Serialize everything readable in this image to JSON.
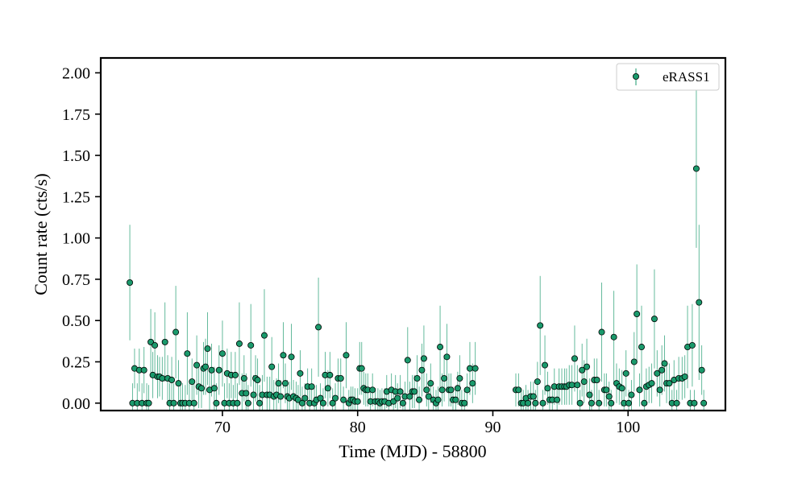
{
  "chart_data": {
    "type": "scatter",
    "title": "",
    "xlabel": "Time (MJD) - 58800",
    "ylabel": "Count rate (cts/s)",
    "xlim": [
      61.0,
      107.2
    ],
    "ylim": [
      -0.045,
      2.09
    ],
    "xticks": [
      70,
      80,
      90,
      100
    ],
    "xtick_labels": [
      "70",
      "80",
      "90",
      "100"
    ],
    "yticks": [
      0.0,
      0.25,
      0.5,
      0.75,
      1.0,
      1.25,
      1.5,
      1.75,
      2.0
    ],
    "ytick_labels": [
      "0.00",
      "0.25",
      "0.50",
      "0.75",
      "1.00",
      "1.25",
      "1.50",
      "1.75",
      "2.00"
    ],
    "grid": false,
    "legend_position": "top-right",
    "series": [
      {
        "name": "eRASS1",
        "color": "#1a9a6c",
        "points": [
          [
            63.15,
            0.73,
            0.35
          ],
          [
            63.35,
            0.0,
            0.12
          ],
          [
            63.5,
            0.21,
            0.12
          ],
          [
            63.7,
            0.0,
            0.12
          ],
          [
            63.85,
            0.2,
            0.13
          ],
          [
            64.05,
            0.0,
            0.12
          ],
          [
            64.2,
            0.2,
            0.14
          ],
          [
            64.4,
            0.0,
            0.12
          ],
          [
            64.55,
            0.0,
            0.11
          ],
          [
            64.7,
            0.37,
            0.2
          ],
          [
            64.85,
            0.17,
            0.14
          ],
          [
            65.0,
            0.35,
            0.2
          ],
          [
            65.2,
            0.16,
            0.13
          ],
          [
            65.35,
            0.16,
            0.12
          ],
          [
            65.55,
            0.15,
            0.13
          ],
          [
            65.75,
            0.37,
            0.24
          ],
          [
            65.95,
            0.15,
            0.14
          ],
          [
            66.1,
            0.0,
            0.12
          ],
          [
            66.25,
            0.14,
            0.14
          ],
          [
            66.4,
            0.0,
            0.12
          ],
          [
            66.55,
            0.43,
            0.28
          ],
          [
            66.75,
            0.12,
            0.14
          ],
          [
            66.9,
            0.0,
            0.12
          ],
          [
            67.05,
            0.0,
            0.12
          ],
          [
            67.25,
            0.0,
            0.11
          ],
          [
            67.4,
            0.3,
            0.25
          ],
          [
            67.55,
            0.0,
            0.12
          ],
          [
            67.75,
            0.13,
            0.14
          ],
          [
            67.9,
            0.0,
            0.12
          ],
          [
            68.1,
            0.23,
            0.18
          ],
          [
            68.25,
            0.1,
            0.13
          ],
          [
            68.45,
            0.09,
            0.12
          ],
          [
            68.6,
            0.21,
            0.16
          ],
          [
            68.75,
            0.22,
            0.17
          ],
          [
            68.9,
            0.33,
            0.22
          ],
          [
            69.05,
            0.08,
            0.12
          ],
          [
            69.2,
            0.2,
            0.16
          ],
          [
            69.4,
            0.09,
            0.13
          ],
          [
            69.55,
            0.0,
            0.12
          ],
          [
            69.75,
            0.2,
            0.15
          ],
          [
            70.0,
            0.3,
            0.2
          ],
          [
            70.15,
            0.0,
            0.12
          ],
          [
            70.35,
            0.18,
            0.15
          ],
          [
            70.5,
            0.0,
            0.12
          ],
          [
            70.65,
            0.17,
            0.14
          ],
          [
            70.8,
            0.0,
            0.11
          ],
          [
            70.95,
            0.17,
            0.14
          ],
          [
            71.1,
            0.0,
            0.12
          ],
          [
            71.25,
            0.36,
            0.25
          ],
          [
            71.45,
            0.06,
            0.12
          ],
          [
            71.6,
            0.15,
            0.14
          ],
          [
            71.75,
            0.06,
            0.12
          ],
          [
            71.9,
            0.0,
            0.11
          ],
          [
            72.1,
            0.35,
            0.25
          ],
          [
            72.3,
            0.05,
            0.12
          ],
          [
            72.45,
            0.15,
            0.14
          ],
          [
            72.6,
            0.14,
            0.13
          ],
          [
            72.75,
            0.0,
            0.11
          ],
          [
            72.95,
            0.05,
            0.12
          ],
          [
            73.1,
            0.41,
            0.28
          ],
          [
            73.3,
            0.05,
            0.11
          ],
          [
            73.5,
            0.05,
            0.11
          ],
          [
            73.65,
            0.22,
            0.18
          ],
          [
            73.8,
            0.04,
            0.1
          ],
          [
            74.0,
            0.05,
            0.1
          ],
          [
            74.15,
            0.12,
            0.12
          ],
          [
            74.3,
            0.04,
            0.1
          ],
          [
            74.5,
            0.29,
            0.2
          ],
          [
            74.65,
            0.12,
            0.12
          ],
          [
            74.8,
            0.04,
            0.1
          ],
          [
            74.95,
            0.03,
            0.1
          ],
          [
            75.1,
            0.28,
            0.2
          ],
          [
            75.25,
            0.04,
            0.1
          ],
          [
            75.45,
            0.03,
            0.1
          ],
          [
            75.6,
            0.02,
            0.09
          ],
          [
            75.75,
            0.18,
            0.14
          ],
          [
            75.9,
            0.0,
            0.1
          ],
          [
            76.1,
            0.03,
            0.09
          ],
          [
            76.3,
            0.1,
            0.11
          ],
          [
            76.45,
            0.0,
            0.09
          ],
          [
            76.6,
            0.1,
            0.11
          ],
          [
            76.8,
            0.0,
            0.09
          ],
          [
            76.95,
            0.02,
            0.09
          ],
          [
            77.1,
            0.46,
            0.3
          ],
          [
            77.25,
            0.03,
            0.09
          ],
          [
            77.45,
            0.0,
            0.09
          ],
          [
            77.6,
            0.17,
            0.14
          ],
          [
            77.8,
            0.09,
            0.11
          ],
          [
            77.95,
            0.17,
            0.14
          ],
          [
            78.15,
            0.0,
            0.09
          ],
          [
            78.35,
            0.03,
            0.09
          ],
          [
            78.55,
            0.15,
            0.12
          ],
          [
            78.75,
            0.15,
            0.12
          ],
          [
            78.95,
            0.02,
            0.08
          ],
          [
            79.15,
            0.29,
            0.2
          ],
          [
            79.35,
            0.0,
            0.08
          ],
          [
            79.5,
            0.02,
            0.08
          ],
          [
            79.65,
            0.02,
            0.08
          ],
          [
            79.8,
            0.01,
            0.08
          ],
          [
            80.0,
            0.01,
            0.08
          ],
          [
            80.15,
            0.21,
            0.16
          ],
          [
            80.3,
            0.21,
            0.16
          ],
          [
            80.45,
            0.09,
            0.1
          ],
          [
            80.6,
            0.08,
            0.1
          ],
          [
            80.75,
            0.08,
            0.1
          ],
          [
            80.95,
            0.01,
            0.08
          ],
          [
            81.1,
            0.08,
            0.1
          ],
          [
            81.3,
            0.01,
            0.08
          ],
          [
            81.5,
            0.01,
            0.08
          ],
          [
            81.65,
            0.0,
            0.08
          ],
          [
            81.8,
            0.01,
            0.08
          ],
          [
            82.0,
            0.01,
            0.08
          ],
          [
            82.15,
            0.07,
            0.1
          ],
          [
            82.3,
            0.0,
            0.08
          ],
          [
            82.5,
            0.08,
            0.1
          ],
          [
            82.65,
            0.01,
            0.08
          ],
          [
            82.8,
            0.07,
            0.1
          ],
          [
            82.95,
            0.03,
            0.09
          ],
          [
            83.15,
            0.07,
            0.1
          ],
          [
            83.35,
            0.0,
            0.08
          ],
          [
            83.5,
            0.04,
            0.09
          ],
          [
            83.7,
            0.26,
            0.2
          ],
          [
            83.85,
            0.04,
            0.09
          ],
          [
            84.05,
            0.07,
            0.1
          ],
          [
            84.2,
            0.07,
            0.1
          ],
          [
            84.4,
            0.15,
            0.14
          ],
          [
            84.55,
            0.02,
            0.08
          ],
          [
            84.75,
            0.2,
            0.16
          ],
          [
            84.9,
            0.27,
            0.2
          ],
          [
            85.1,
            0.08,
            0.1
          ],
          [
            85.25,
            0.04,
            0.09
          ],
          [
            85.4,
            0.12,
            0.12
          ],
          [
            85.6,
            0.02,
            0.08
          ],
          [
            85.8,
            0.0,
            0.08
          ],
          [
            85.95,
            0.02,
            0.08
          ],
          [
            86.1,
            0.34,
            0.25
          ],
          [
            86.25,
            0.08,
            0.1
          ],
          [
            86.4,
            0.15,
            0.14
          ],
          [
            86.6,
            0.28,
            0.2
          ],
          [
            86.75,
            0.08,
            0.1
          ],
          [
            86.9,
            0.08,
            0.1
          ],
          [
            87.05,
            0.02,
            0.08
          ],
          [
            87.25,
            0.02,
            0.08
          ],
          [
            87.4,
            0.09,
            0.1
          ],
          [
            87.55,
            0.15,
            0.14
          ],
          [
            87.7,
            0.0,
            0.08
          ],
          [
            87.9,
            0.0,
            0.08
          ],
          [
            88.1,
            0.08,
            0.1
          ],
          [
            88.3,
            0.21,
            0.16
          ],
          [
            88.5,
            0.12,
            0.12
          ],
          [
            88.7,
            0.21,
            0.16
          ],
          [
            91.7,
            0.08,
            0.1
          ],
          [
            91.9,
            0.08,
            0.1
          ],
          [
            92.1,
            0.0,
            0.08
          ],
          [
            92.25,
            0.0,
            0.08
          ],
          [
            92.45,
            0.03,
            0.08
          ],
          [
            92.6,
            0.0,
            0.08
          ],
          [
            92.8,
            0.04,
            0.09
          ],
          [
            93.0,
            0.04,
            0.09
          ],
          [
            93.15,
            0.0,
            0.08
          ],
          [
            93.3,
            0.13,
            0.12
          ],
          [
            93.5,
            0.47,
            0.3
          ],
          [
            93.7,
            0.0,
            0.08
          ],
          [
            93.85,
            0.23,
            0.18
          ],
          [
            94.05,
            0.09,
            0.1
          ],
          [
            94.2,
            0.02,
            0.08
          ],
          [
            94.4,
            0.02,
            0.08
          ],
          [
            94.55,
            0.1,
            0.11
          ],
          [
            94.75,
            0.02,
            0.08
          ],
          [
            94.9,
            0.1,
            0.11
          ],
          [
            95.1,
            0.1,
            0.11
          ],
          [
            95.3,
            0.1,
            0.11
          ],
          [
            95.45,
            0.1,
            0.11
          ],
          [
            95.65,
            0.11,
            0.12
          ],
          [
            95.85,
            0.11,
            0.12
          ],
          [
            96.05,
            0.27,
            0.2
          ],
          [
            96.25,
            0.11,
            0.12
          ],
          [
            96.45,
            0.0,
            0.08
          ],
          [
            96.6,
            0.2,
            0.16
          ],
          [
            96.75,
            0.13,
            0.13
          ],
          [
            96.95,
            0.22,
            0.17
          ],
          [
            97.15,
            0.05,
            0.1
          ],
          [
            97.3,
            0.0,
            0.08
          ],
          [
            97.5,
            0.14,
            0.13
          ],
          [
            97.7,
            0.14,
            0.13
          ],
          [
            97.85,
            0.0,
            0.08
          ],
          [
            98.05,
            0.43,
            0.3
          ],
          [
            98.25,
            0.08,
            0.1
          ],
          [
            98.4,
            0.08,
            0.1
          ],
          [
            98.6,
            0.04,
            0.09
          ],
          [
            98.75,
            0.0,
            0.08
          ],
          [
            98.95,
            0.4,
            0.28
          ],
          [
            99.15,
            0.12,
            0.12
          ],
          [
            99.35,
            0.1,
            0.11
          ],
          [
            99.55,
            0.09,
            0.11
          ],
          [
            99.7,
            0.0,
            0.08
          ],
          [
            99.85,
            0.18,
            0.14
          ],
          [
            100.05,
            0.0,
            0.08
          ],
          [
            100.25,
            0.05,
            0.09
          ],
          [
            100.45,
            0.25,
            0.18
          ],
          [
            100.65,
            0.54,
            0.3
          ],
          [
            100.85,
            0.08,
            0.1
          ],
          [
            101.0,
            0.34,
            0.25
          ],
          [
            101.2,
            0.0,
            0.08
          ],
          [
            101.35,
            0.1,
            0.11
          ],
          [
            101.55,
            0.11,
            0.11
          ],
          [
            101.75,
            0.12,
            0.12
          ],
          [
            101.95,
            0.51,
            0.3
          ],
          [
            102.15,
            0.18,
            0.14
          ],
          [
            102.35,
            0.08,
            0.1
          ],
          [
            102.5,
            0.2,
            0.15
          ],
          [
            102.7,
            0.24,
            0.17
          ],
          [
            102.85,
            0.12,
            0.12
          ],
          [
            103.05,
            0.12,
            0.12
          ],
          [
            103.25,
            0.0,
            0.08
          ],
          [
            103.4,
            0.14,
            0.12
          ],
          [
            103.6,
            0.0,
            0.08
          ],
          [
            103.75,
            0.15,
            0.13
          ],
          [
            104.0,
            0.15,
            0.13
          ],
          [
            104.2,
            0.16,
            0.13
          ],
          [
            104.4,
            0.34,
            0.25
          ],
          [
            104.6,
            0.0,
            0.08
          ],
          [
            104.75,
            0.35,
            0.25
          ],
          [
            104.9,
            0.0,
            0.08
          ],
          [
            105.05,
            1.42,
            0.48
          ],
          [
            105.25,
            0.61,
            0.47
          ],
          [
            105.45,
            0.2,
            0.15
          ],
          [
            105.6,
            0.0,
            0.08
          ]
        ]
      }
    ]
  }
}
